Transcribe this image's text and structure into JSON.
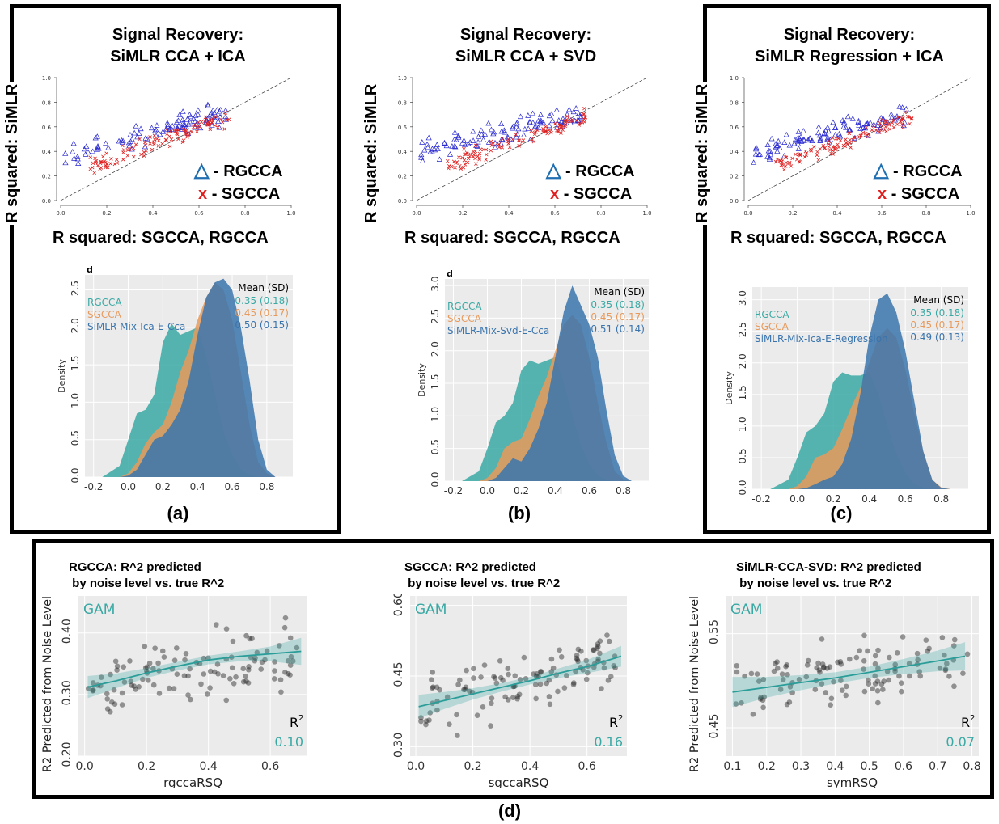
{
  "panels_top": [
    {
      "id": "a",
      "panel_label": "(a)",
      "title_line1": "Signal Recovery:",
      "title_line2": "SiMLR  CCA + ICA",
      "ylabel": "R squared: SiMLR",
      "xlabel": "R squared: SGCCA, RGCCA",
      "legend": [
        {
          "marker": "△",
          "label": "- RGCCA"
        },
        {
          "marker": "x",
          "label": "- SGCCA"
        }
      ],
      "density_header": "Mean (SD)",
      "density_rows": [
        {
          "name": "RGCCA",
          "stat": "0.35 (0.18)",
          "color": "#3aa9a4"
        },
        {
          "name": "SGCCA",
          "stat": "0.45 (0.17)",
          "color": "#e89a5c"
        },
        {
          "name": "SiMLR-Mix-Ica-E-Cca",
          "stat": "0.50 (0.15)",
          "color": "#3a74ad"
        }
      ],
      "density_tag": "d",
      "density_ylabel": "Density"
    },
    {
      "id": "b",
      "panel_label": "(b)",
      "title_line1": "Signal Recovery:",
      "title_line2": "SiMLR CCA + SVD",
      "ylabel": "R squared: SiMLR",
      "xlabel": "R squared: SGCCA, RGCCA",
      "legend": [
        {
          "marker": "△",
          "label": "- RGCCA"
        },
        {
          "marker": "x",
          "label": "- SGCCA"
        }
      ],
      "density_header": "Mean (SD)",
      "density_rows": [
        {
          "name": "RGCCA",
          "stat": "0.35 (0.18)",
          "color": "#3aa9a4"
        },
        {
          "name": "SGCCA",
          "stat": "0.45 (0.17)",
          "color": "#e89a5c"
        },
        {
          "name": "SiMLR-Mix-Svd-E-Cca",
          "stat": "0.51 (0.14)",
          "color": "#3a74ad"
        }
      ],
      "density_tag": "d",
      "density_ylabel": "Density"
    },
    {
      "id": "c",
      "panel_label": "(c)",
      "title_line1": "Signal Recovery:",
      "title_line2": "SiMLR Regression + ICA",
      "ylabel": "R squared: SiMLR",
      "xlabel": "R squared: SGCCA, RGCCA",
      "legend": [
        {
          "marker": "△",
          "label": "- RGCCA"
        },
        {
          "marker": "x",
          "label": "- SGCCA"
        }
      ],
      "density_header": "Mean (SD)",
      "density_rows": [
        {
          "name": "RGCCA",
          "stat": "0.35 (0.18)",
          "color": "#3aa9a4"
        },
        {
          "name": "SGCCA",
          "stat": "0.45 (0.17)",
          "color": "#e89a5c"
        },
        {
          "name": "SiMLR-Mix-Ica-E-Regression",
          "stat": "0.49 (0.13)",
          "color": "#3a74ad"
        }
      ],
      "density_tag": "",
      "density_ylabel": "Density"
    }
  ],
  "panels_bottom": [
    {
      "id": "d1",
      "title": "RGCCA: R^2 predicted\n by noise level vs. true R^2",
      "xlabel": "rgccaRSQ",
      "ylabel": "R2 Predicted from Noise Level",
      "gam_label": "GAM",
      "r2_label": "R",
      "r2_value": "0.10"
    },
    {
      "id": "d2",
      "title": "SGCCA: R^2 predicted\n by noise level vs. true R^2",
      "xlabel": "sgccaRSQ",
      "ylabel": "",
      "gam_label": "GAM",
      "r2_label": "R",
      "r2_value": "0.16"
    },
    {
      "id": "d3",
      "title": "SiMLR-CCA-SVD: R^2 predicted\n by noise level vs. true R^2",
      "xlabel": "symRSQ",
      "ylabel": "R2 Predicted from Noise Level",
      "gam_label": "GAM",
      "r2_label": "R",
      "r2_value": "0.07"
    }
  ],
  "bottom_panel_label": "(d)",
  "chart_data": [
    {
      "type": "scatter",
      "panel": "a",
      "xlim": [
        0,
        1
      ],
      "ylim": [
        0,
        1
      ],
      "xticks": [
        "0.0",
        "0.2",
        "0.4",
        "0.6",
        "0.8",
        "1.0"
      ],
      "yticks": [
        "0.0",
        "0.2",
        "0.4",
        "0.6",
        "0.8",
        "1.0"
      ],
      "series": [
        {
          "name": "RGCCA",
          "marker": "triangle",
          "color": "#2a2ad0"
        },
        {
          "name": "SGCCA",
          "marker": "x",
          "color": "#e02020"
        }
      ],
      "reference_line": "y = x"
    },
    {
      "type": "scatter",
      "panel": "b",
      "xlim": [
        0,
        1
      ],
      "ylim": [
        0,
        1
      ],
      "xticks": [
        "0.0",
        "0.2",
        "0.4",
        "0.6",
        "0.8",
        "1.0"
      ],
      "yticks": [
        "0.0",
        "0.2",
        "0.4",
        "0.6",
        "0.8",
        "1.0"
      ],
      "series": [
        {
          "name": "RGCCA",
          "marker": "triangle",
          "color": "#2a2ad0"
        },
        {
          "name": "SGCCA",
          "marker": "x",
          "color": "#e02020"
        }
      ],
      "reference_line": "y = x"
    },
    {
      "type": "scatter",
      "panel": "c",
      "xlim": [
        0,
        1
      ],
      "ylim": [
        0,
        1
      ],
      "xticks": [
        "0.0",
        "0.2",
        "0.4",
        "0.6",
        "0.8",
        "1.0"
      ],
      "yticks": [
        "0.0",
        "0.2",
        "0.4",
        "0.6",
        "0.8",
        "1.0"
      ],
      "series": [
        {
          "name": "RGCCA",
          "marker": "triangle",
          "color": "#2a2ad0"
        },
        {
          "name": "SGCCA",
          "marker": "x",
          "color": "#e02020"
        }
      ],
      "reference_line": "y = x"
    },
    {
      "type": "area",
      "panel": "a",
      "xlim": [
        -0.25,
        0.95
      ],
      "ylim": [
        0,
        2.7
      ],
      "xticks": [
        "-0.2",
        "0.0",
        "0.2",
        "0.4",
        "0.6",
        "0.8"
      ],
      "yticks": [
        "0.0",
        "0.5",
        "1.0",
        "1.5",
        "2.0",
        "2.5"
      ],
      "x": [
        -0.15,
        -0.05,
        0.0,
        0.05,
        0.1,
        0.15,
        0.2,
        0.25,
        0.3,
        0.35,
        0.4,
        0.45,
        0.5,
        0.55,
        0.6,
        0.65,
        0.7,
        0.75,
        0.8,
        0.85
      ],
      "series": [
        {
          "name": "RGCCA",
          "values": [
            0.0,
            0.15,
            0.5,
            0.85,
            0.9,
            1.1,
            1.8,
            2.05,
            1.9,
            1.95,
            2.0,
            1.6,
            1.1,
            0.6,
            0.3,
            0.1,
            0.03,
            0.0,
            0.0,
            0.0
          ]
        },
        {
          "name": "SGCCA",
          "values": [
            0.0,
            0.0,
            0.05,
            0.2,
            0.45,
            0.6,
            0.7,
            1.0,
            1.4,
            1.7,
            2.1,
            2.4,
            2.6,
            2.5,
            2.1,
            1.4,
            0.7,
            0.2,
            0.05,
            0.0
          ]
        },
        {
          "name": "SiMLR-Mix-Ica-E-Cca",
          "values": [
            0.0,
            0.0,
            0.02,
            0.1,
            0.3,
            0.5,
            0.55,
            0.7,
            0.9,
            1.3,
            1.9,
            2.4,
            2.6,
            2.65,
            2.5,
            2.0,
            1.3,
            0.5,
            0.1,
            0.0
          ]
        }
      ]
    },
    {
      "type": "area",
      "panel": "b",
      "xlim": [
        -0.25,
        0.95
      ],
      "ylim": [
        0,
        3.1
      ],
      "xticks": [
        "-0.2",
        "0.0",
        "0.2",
        "0.4",
        "0.6",
        "0.8"
      ],
      "yticks": [
        "0.0",
        "0.5",
        "1.0",
        "1.5",
        "2.0",
        "2.5",
        "3.0"
      ],
      "x": [
        -0.15,
        -0.05,
        0.0,
        0.05,
        0.1,
        0.15,
        0.2,
        0.25,
        0.3,
        0.35,
        0.4,
        0.45,
        0.5,
        0.55,
        0.6,
        0.65,
        0.7,
        0.75,
        0.8,
        0.85
      ],
      "series": [
        {
          "name": "RGCCA",
          "values": [
            0.0,
            0.15,
            0.5,
            0.9,
            1.0,
            1.2,
            1.7,
            1.85,
            1.8,
            1.85,
            1.9,
            1.5,
            1.0,
            0.55,
            0.25,
            0.08,
            0.02,
            0.0,
            0.0,
            0.0
          ]
        },
        {
          "name": "SGCCA",
          "values": [
            0.0,
            0.0,
            0.05,
            0.2,
            0.5,
            0.6,
            0.65,
            0.95,
            1.3,
            1.6,
            2.0,
            2.4,
            2.55,
            2.4,
            1.9,
            1.2,
            0.6,
            0.15,
            0.03,
            0.0
          ]
        },
        {
          "name": "SiMLR-Mix-Svd-E-Cca",
          "values": [
            0.0,
            0.0,
            0.0,
            0.05,
            0.2,
            0.35,
            0.3,
            0.5,
            0.8,
            1.2,
            1.9,
            2.6,
            3.0,
            2.7,
            2.4,
            1.9,
            1.1,
            0.4,
            0.08,
            0.0
          ]
        }
      ]
    },
    {
      "type": "area",
      "panel": "c",
      "xlim": [
        -0.25,
        0.95
      ],
      "ylim": [
        0,
        3.2
      ],
      "xticks": [
        "-0.2",
        "0.0",
        "0.2",
        "0.4",
        "0.6",
        "0.8"
      ],
      "yticks": [
        "0.0",
        "0.5",
        "1.0",
        "1.5",
        "2.0",
        "2.5",
        "3.0"
      ],
      "x": [
        -0.15,
        -0.05,
        0.0,
        0.05,
        0.1,
        0.15,
        0.2,
        0.25,
        0.3,
        0.35,
        0.4,
        0.45,
        0.5,
        0.55,
        0.6,
        0.65,
        0.7,
        0.75,
        0.8,
        0.85
      ],
      "series": [
        {
          "name": "RGCCA",
          "values": [
            0.0,
            0.15,
            0.5,
            0.9,
            1.0,
            1.2,
            1.7,
            1.85,
            1.8,
            1.8,
            1.85,
            1.5,
            1.0,
            0.55,
            0.25,
            0.08,
            0.02,
            0.0,
            0.0,
            0.0
          ]
        },
        {
          "name": "SGCCA",
          "values": [
            0.0,
            0.0,
            0.05,
            0.2,
            0.5,
            0.55,
            0.65,
            0.95,
            1.3,
            1.6,
            2.0,
            2.4,
            2.55,
            2.4,
            1.9,
            1.2,
            0.6,
            0.15,
            0.03,
            0.0
          ]
        },
        {
          "name": "SiMLR-Mix-Ica-E-Regression",
          "values": [
            0.0,
            0.0,
            0.0,
            0.02,
            0.08,
            0.15,
            0.2,
            0.4,
            0.8,
            1.5,
            2.4,
            3.0,
            3.1,
            2.8,
            2.2,
            1.4,
            0.6,
            0.15,
            0.02,
            0.0
          ]
        }
      ]
    },
    {
      "type": "scatter",
      "panel": "d1",
      "xlim": [
        -0.02,
        0.72
      ],
      "ylim": [
        0.2,
        0.46
      ],
      "xticks": [
        "0.0",
        "0.2",
        "0.4",
        "0.6"
      ],
      "yticks": [
        "0.20",
        "0.30",
        "0.40"
      ],
      "fit_x": [
        0.01,
        0.1,
        0.2,
        0.3,
        0.4,
        0.5,
        0.6,
        0.7
      ],
      "fit_y": [
        0.312,
        0.322,
        0.335,
        0.346,
        0.356,
        0.362,
        0.366,
        0.37
      ],
      "band_halfwidth": [
        0.018,
        0.012,
        0.008,
        0.007,
        0.007,
        0.008,
        0.012,
        0.022
      ]
    },
    {
      "type": "scatter",
      "panel": "d2",
      "xlim": [
        -0.02,
        0.74
      ],
      "ylim": [
        0.28,
        0.62
      ],
      "xticks": [
        "0.0",
        "0.2",
        "0.4",
        "0.6"
      ],
      "yticks": [
        "0.30",
        "0.45",
        "0.60"
      ],
      "fit_x": [
        0.01,
        0.1,
        0.2,
        0.3,
        0.4,
        0.5,
        0.6,
        0.72
      ],
      "fit_y": [
        0.385,
        0.398,
        0.412,
        0.426,
        0.44,
        0.456,
        0.47,
        0.492
      ],
      "band_halfwidth": [
        0.025,
        0.018,
        0.012,
        0.009,
        0.008,
        0.01,
        0.014,
        0.022
      ]
    },
    {
      "type": "scatter",
      "panel": "d3",
      "xlim": [
        0.08,
        0.82
      ],
      "ylim": [
        0.42,
        0.59
      ],
      "xticks": [
        "0.1",
        "0.2",
        "0.3",
        "0.4",
        "0.5",
        "0.6",
        "0.7",
        "0.8"
      ],
      "yticks": [
        "0.45",
        "0.55"
      ],
      "fit_x": [
        0.1,
        0.2,
        0.3,
        0.4,
        0.5,
        0.6,
        0.7,
        0.78
      ],
      "fit_y": [
        0.488,
        0.493,
        0.498,
        0.503,
        0.509,
        0.515,
        0.521,
        0.526
      ],
      "band_halfwidth": [
        0.016,
        0.011,
        0.008,
        0.006,
        0.006,
        0.008,
        0.011,
        0.015
      ]
    }
  ]
}
